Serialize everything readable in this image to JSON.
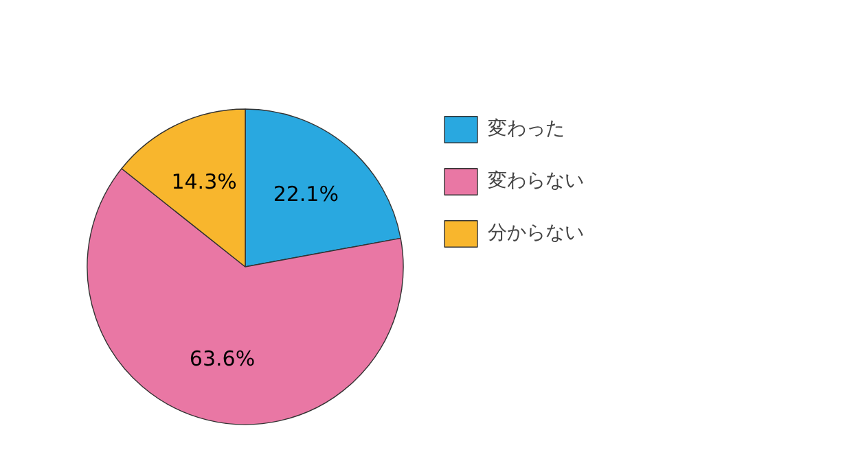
{
  "chart_data": {
    "type": "pie",
    "categories": [
      "変わった",
      "変わらない",
      "分からない"
    ],
    "values": [
      22.1,
      63.6,
      14.3
    ],
    "colors": [
      "#29a8e0",
      "#e977a4",
      "#f8b62d"
    ],
    "value_labels": [
      "22.1%",
      "63.6%",
      "14.3%"
    ],
    "legend": "top right"
  }
}
